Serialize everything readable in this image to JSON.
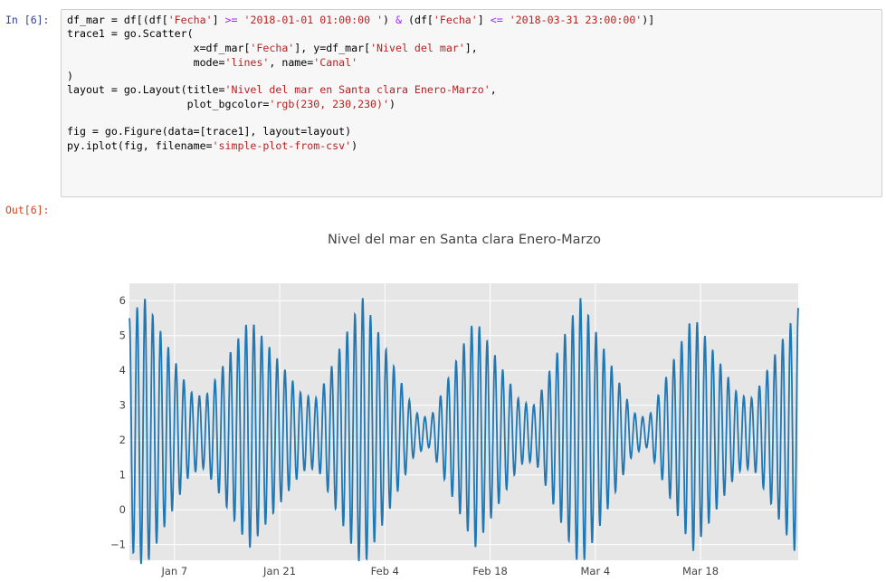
{
  "in_prompt": "In [6]:",
  "out_prompt": "Out[6]:",
  "code": {
    "l1": {
      "a": "df_mar = df[(df[",
      "s1": "'Fecha'",
      "b": "] ",
      "op1": ">=",
      "c": " ",
      "s2": "'2018-01-01 01:00:00 '",
      "d": ") ",
      "op2": "&",
      "e": " (df[",
      "s3": "'Fecha'",
      "f": "] ",
      "op3": "<=",
      "g": " ",
      "s4": "'2018-03-31 23:00:00'",
      "h": ")]"
    },
    "l2": {
      "a": "trace1 = go.Scatter("
    },
    "l3": {
      "a": "                    x=df_mar[",
      "s1": "'Fecha'",
      "b": "], y=df_mar[",
      "s2": "'Nivel del mar'",
      "c": "],"
    },
    "l4": {
      "a": "                    mode=",
      "s1": "'lines'",
      "b": ", name=",
      "s2": "'Canal'"
    },
    "l5": {
      "a": ")"
    },
    "l6": {
      "a": "layout = go.Layout(title=",
      "s1": "'Nivel del mar en Santa clara Enero-Marzo'",
      "b": ","
    },
    "l7": {
      "a": "                   plot_bgcolor=",
      "s1": "'rgb(230, 230,230)'",
      "b": ")"
    },
    "l8": {
      "a": ""
    },
    "l9": {
      "a": "fig = go.Figure(data=[trace1], layout=layout)"
    },
    "l10": {
      "a": "py.iplot(fig, filename=",
      "s1": "'simple-plot-from-csv'",
      "b": ")"
    }
  },
  "colors": {
    "plot_bg": "#e6e6e6",
    "line": "#1f77b4",
    "grid": "#ffffff",
    "string": "#ba2121",
    "operator": "#aa22ff",
    "in_prompt": "#303f9f",
    "out_prompt": "#d84315"
  },
  "chart_data": {
    "type": "line",
    "title": "Nivel del mar en Santa clara Enero-Marzo",
    "xlabel": "",
    "ylabel": "",
    "xlim": [
      "2018-01-01",
      "2018-03-31"
    ],
    "ylim": [
      -1.45,
      6.5
    ],
    "yticks": [
      -1,
      0,
      1,
      2,
      3,
      4,
      5,
      6
    ],
    "xticks": [
      {
        "date": "2018-01-07",
        "label": "Jan 7"
      },
      {
        "date": "2018-01-21",
        "label": "Jan 21"
      },
      {
        "date": "2018-02-04",
        "label": "Feb 4"
      },
      {
        "date": "2018-02-18",
        "label": "Feb 18"
      },
      {
        "date": "2018-03-04",
        "label": "Mar 4"
      },
      {
        "date": "2018-03-18",
        "label": "Mar 18"
      }
    ],
    "grid": true,
    "legend": false,
    "series": [
      {
        "name": "Canal",
        "mean": 2.2,
        "amplitude_by_day": [
          {
            "date": "2018-01-01",
            "amplitude": 3.3
          },
          {
            "date": "2018-01-03",
            "amplitude": 3.9
          },
          {
            "date": "2018-01-09",
            "amplitude": 1.2
          },
          {
            "date": "2018-01-11",
            "amplitude": 1.0
          },
          {
            "date": "2018-01-17",
            "amplitude": 3.3
          },
          {
            "date": "2018-01-24",
            "amplitude": 1.1
          },
          {
            "date": "2018-01-26",
            "amplitude": 1.0
          },
          {
            "date": "2018-02-01",
            "amplitude": 3.9
          },
          {
            "date": "2018-02-08",
            "amplitude": 0.6
          },
          {
            "date": "2018-02-10",
            "amplitude": 0.4
          },
          {
            "date": "2018-02-16",
            "amplitude": 3.3
          },
          {
            "date": "2018-02-22",
            "amplitude": 0.9
          },
          {
            "date": "2018-02-24",
            "amplitude": 0.8
          },
          {
            "date": "2018-03-02",
            "amplitude": 3.9
          },
          {
            "date": "2018-03-09",
            "amplitude": 0.6
          },
          {
            "date": "2018-03-11",
            "amplitude": 0.4
          },
          {
            "date": "2018-03-17",
            "amplitude": 3.4
          },
          {
            "date": "2018-03-23",
            "amplitude": 1.1
          },
          {
            "date": "2018-03-25",
            "amplitude": 1.0
          },
          {
            "date": "2018-03-31",
            "amplitude": 3.6
          }
        ]
      }
    ]
  }
}
